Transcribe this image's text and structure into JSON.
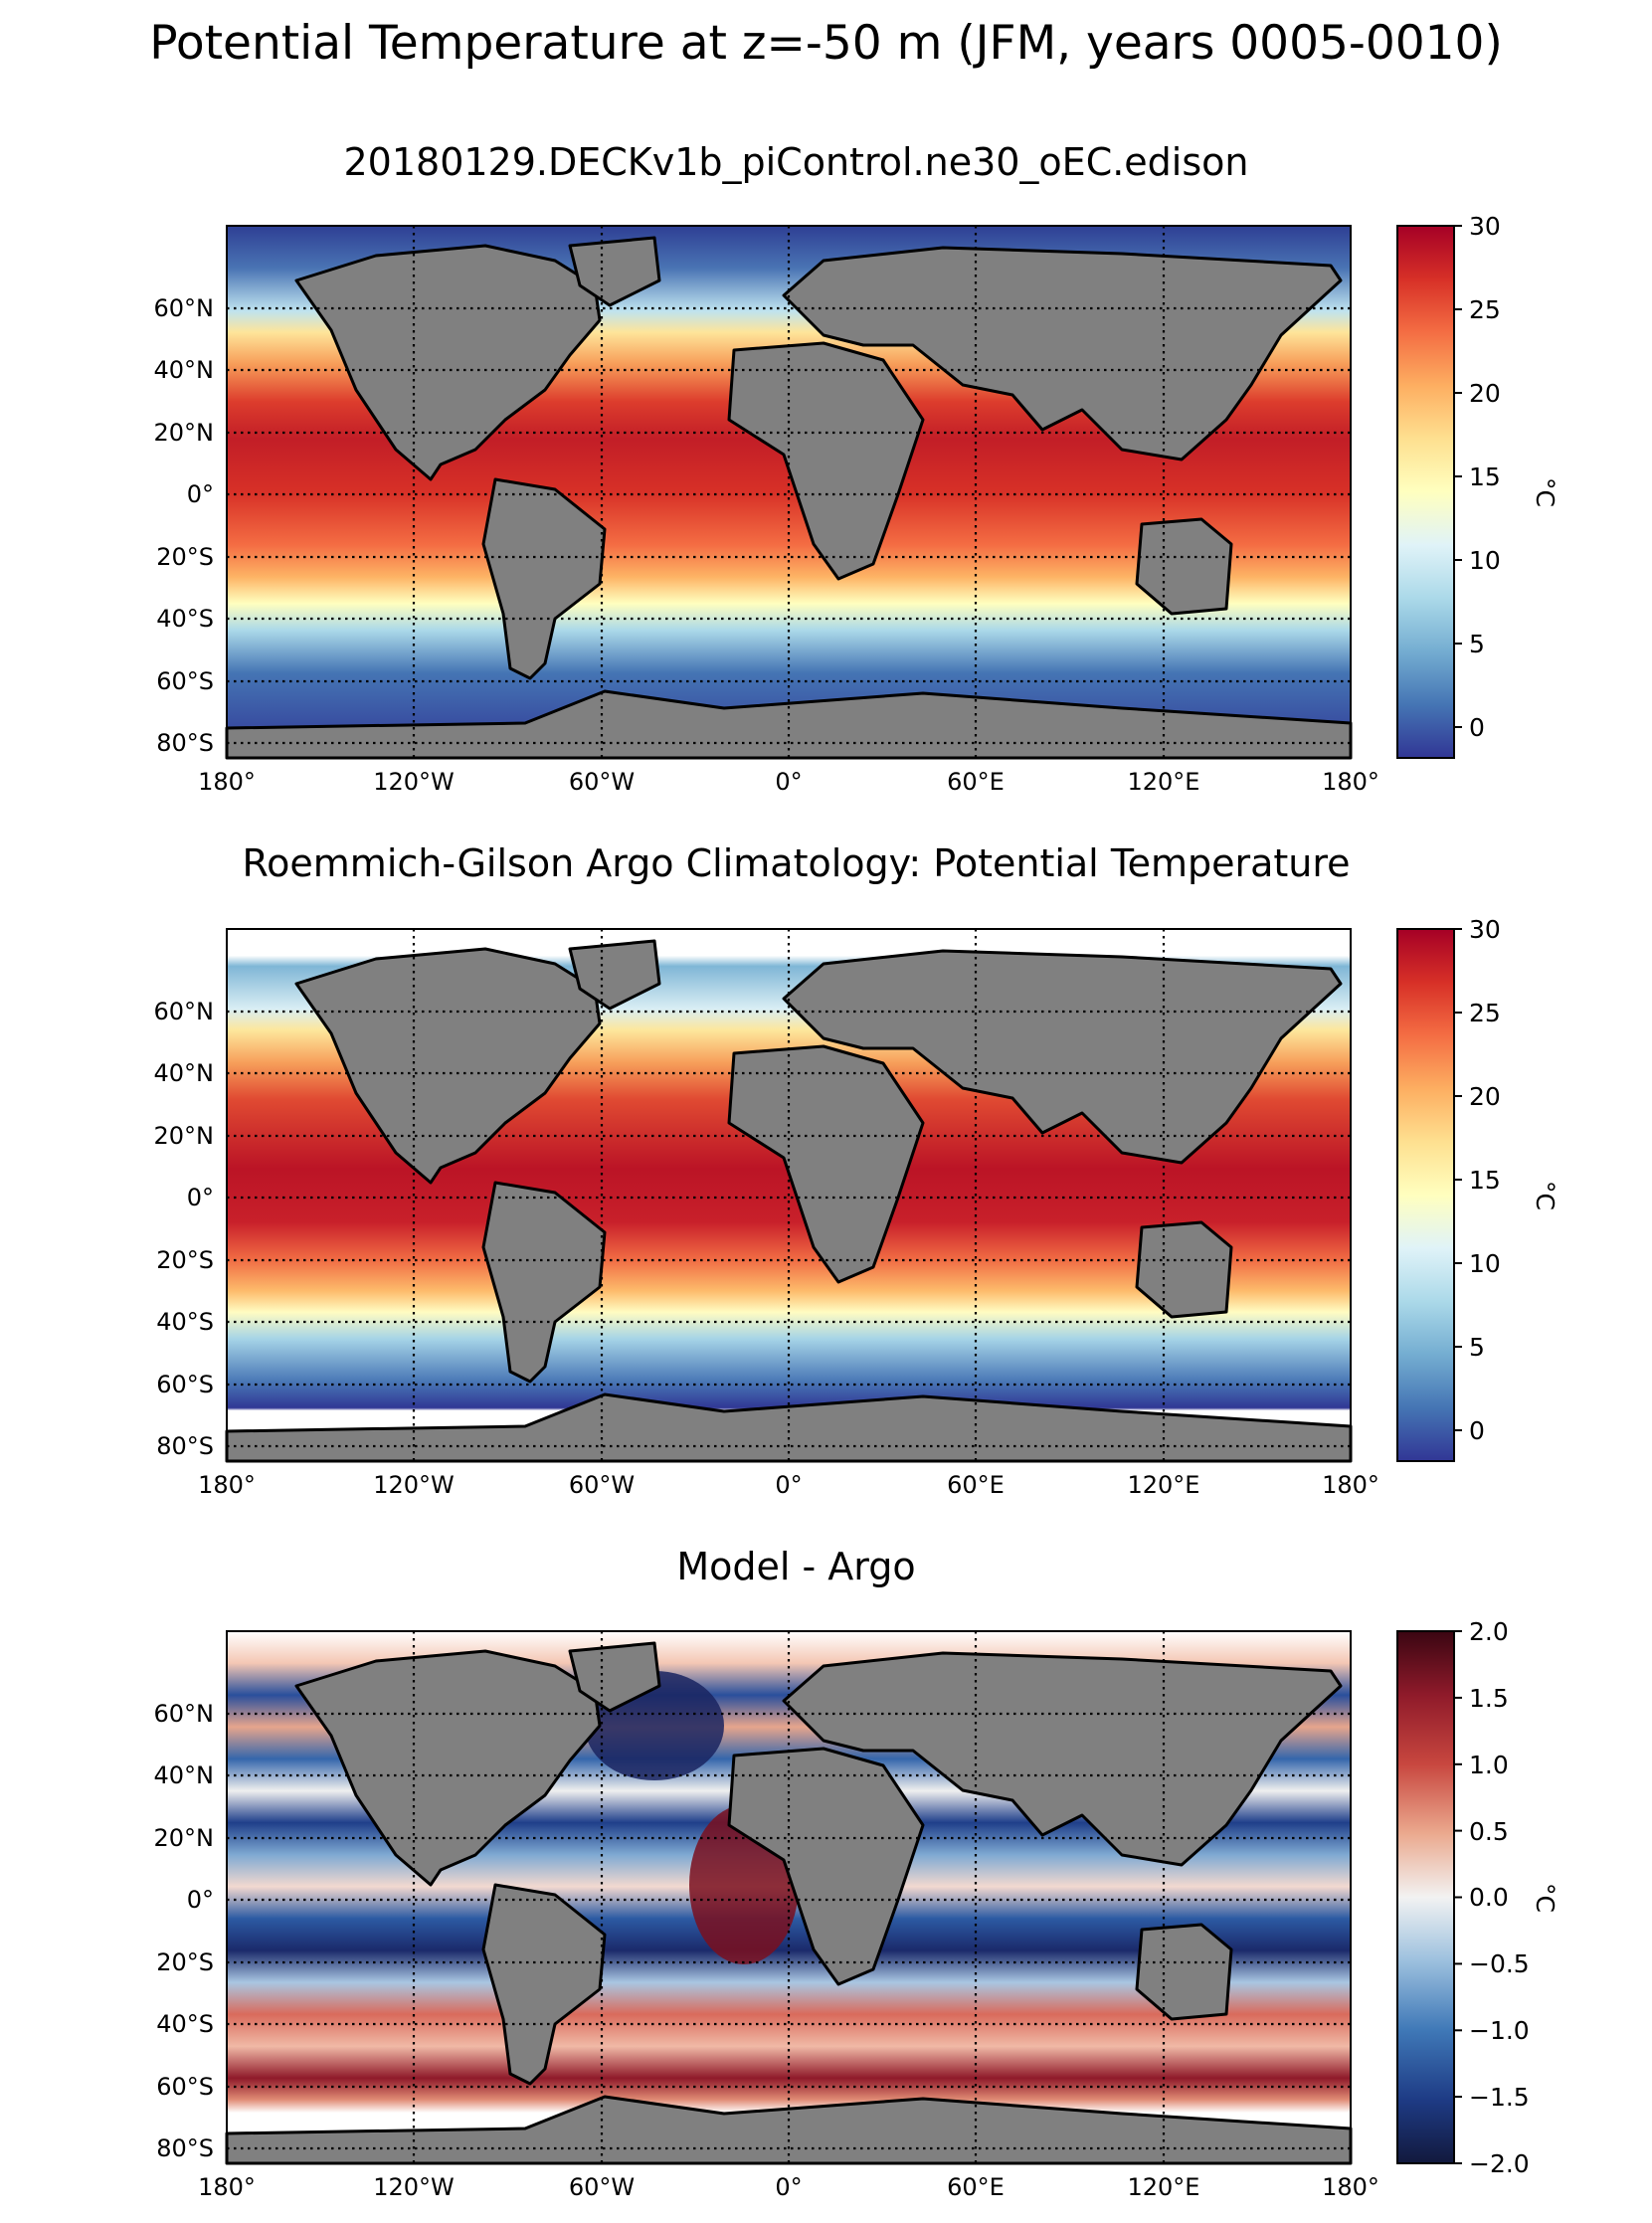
{
  "figure": {
    "title": "Potential Temperature at z=-50 m (JFM, years 0005-0010)"
  },
  "colors": {
    "land": "#808080",
    "missing": "#ffffff",
    "coast": "#000000"
  },
  "axes": {
    "lon_ticks": [
      "180°",
      "120°W",
      "60°W",
      "0°",
      "60°E",
      "120°E",
      "180°"
    ],
    "lat_ticks": [
      "60°N",
      "40°N",
      "20°N",
      "0°",
      "20°S",
      "40°S",
      "60°S",
      "80°S"
    ]
  },
  "panels": [
    {
      "id": "model",
      "title": "20180129.DECKv1b_piControl.ne30_oEC.edison",
      "colormap": "RdYlBu_r",
      "cbar_ticks": [
        "30",
        "25",
        "20",
        "15",
        "10",
        "5",
        "0"
      ],
      "cbar_label": "°C"
    },
    {
      "id": "obs",
      "title": "Roemmich-Gilson Argo Climatology: Potential Temperature",
      "colormap": "RdYlBu_r",
      "cbar_ticks": [
        "30",
        "25",
        "20",
        "15",
        "10",
        "5",
        "0"
      ],
      "cbar_label": "°C"
    },
    {
      "id": "diff",
      "title": "Model - Argo",
      "colormap": "RdBu_r",
      "cbar_ticks": [
        "2.0",
        "1.5",
        "1.0",
        "0.5",
        "0.0",
        "−0.5",
        "−1.0",
        "−1.5",
        "−2.0"
      ],
      "cbar_label": "°C"
    }
  ]
}
